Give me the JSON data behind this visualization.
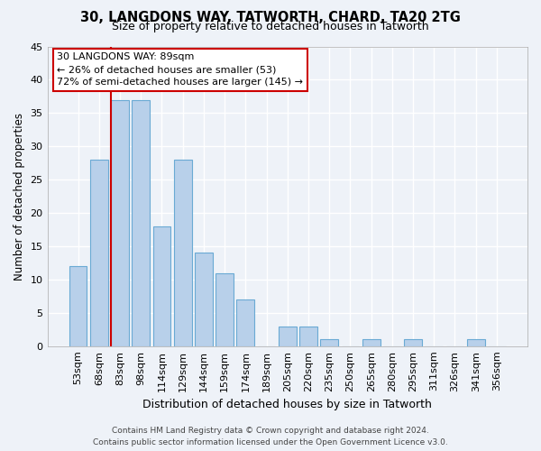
{
  "title": "30, LANGDONS WAY, TATWORTH, CHARD, TA20 2TG",
  "subtitle": "Size of property relative to detached houses in Tatworth",
  "xlabel": "Distribution of detached houses by size in Tatworth",
  "ylabel": "Number of detached properties",
  "bar_labels": [
    "53sqm",
    "68sqm",
    "83sqm",
    "98sqm",
    "114sqm",
    "129sqm",
    "144sqm",
    "159sqm",
    "174sqm",
    "189sqm",
    "205sqm",
    "220sqm",
    "235sqm",
    "250sqm",
    "265sqm",
    "280sqm",
    "295sqm",
    "311sqm",
    "326sqm",
    "341sqm",
    "356sqm"
  ],
  "bar_values": [
    12,
    28,
    37,
    37,
    18,
    28,
    14,
    11,
    7,
    0,
    3,
    3,
    1,
    0,
    1,
    0,
    1,
    0,
    0,
    1,
    0
  ],
  "bar_color": "#b8d0ea",
  "bar_edge_color": "#6aaad4",
  "vline_color": "#cc0000",
  "ylim": [
    0,
    45
  ],
  "annotation_box_text": "30 LANGDONS WAY: 89sqm\n← 26% of detached houses are smaller (53)\n72% of semi-detached houses are larger (145) →",
  "footer_line1": "Contains HM Land Registry data © Crown copyright and database right 2024.",
  "footer_line2": "Contains public sector information licensed under the Open Government Licence v3.0.",
  "background_color": "#eef2f8"
}
